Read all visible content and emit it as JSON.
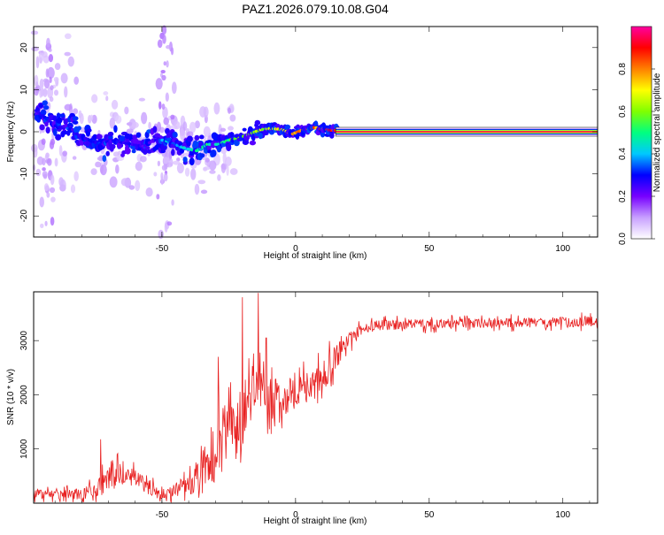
{
  "figure_title": "PAZ1.2026.079.10.08.G04",
  "chart_data": [
    {
      "type": "heatmap",
      "xlabel": "Height of straight line (km)",
      "ylabel": "Frequency (Hz)",
      "xlim": [
        -98,
        113
      ],
      "ylim": [
        -25,
        25
      ],
      "xticks": [
        -50,
        0,
        50,
        100
      ],
      "xtick_labels": [
        "-50",
        "0",
        "50",
        "100"
      ],
      "yticks": [
        -20,
        -10,
        0,
        10,
        20
      ],
      "ytick_labels": [
        "-20",
        "-10",
        "0",
        "10",
        "20"
      ],
      "colorbar": {
        "label": "Normalized spectral amplitude",
        "range": [
          0,
          1
        ],
        "ticks": [
          0.0,
          0.2,
          0.4,
          0.6,
          0.8
        ],
        "tick_labels": [
          "0.0",
          "0.2",
          "0.4",
          "0.6",
          "0.8"
        ],
        "colormap": [
          "#ffffff",
          "#c8a0ff",
          "#7700ff",
          "#0000ff",
          "#00c8ff",
          "#00ff80",
          "#80ff00",
          "#ffff00",
          "#ff8000",
          "#ff0000",
          "#ff00a0"
        ]
      },
      "ridge": {
        "x": [
          -97,
          -93,
          -89,
          -85,
          -81,
          -77,
          -73,
          -69,
          -65,
          -61,
          -57,
          -53,
          -49,
          -45,
          -41,
          -37,
          -33,
          -29,
          -25,
          -21,
          -17,
          -13,
          -9,
          -5,
          -1,
          3,
          7,
          11,
          15
        ],
        "freq": [
          5,
          3,
          1,
          1.5,
          -1,
          -2,
          -3,
          -2,
          -2.5,
          -3,
          -3.5,
          -2,
          -2,
          -3,
          -4,
          -4.5,
          -3,
          -3,
          -2,
          -1.5,
          -0.5,
          0.5,
          0.8,
          0.5,
          -0.5,
          0.5,
          1,
          0.5,
          0.3
        ],
        "amplitude": [
          0.25,
          0.3,
          0.3,
          0.25,
          0.3,
          0.3,
          0.3,
          0.3,
          0.3,
          0.28,
          0.25,
          0.25,
          0.45,
          0.35,
          0.45,
          0.5,
          0.5,
          0.5,
          0.55,
          0.6,
          0.6,
          0.65,
          0.7,
          0.7,
          0.8,
          0.8,
          0.85,
          0.9,
          0.9
        ]
      },
      "carrier_line": {
        "x_from": 15,
        "x_to": 113,
        "freq": 0,
        "amplitude": 0.95
      }
    },
    {
      "type": "line",
      "xlabel": "Height of straight line (km)",
      "ylabel": "SNR (10 * v/v)",
      "xlim": [
        -98,
        113
      ],
      "ylim": [
        0,
        3900
      ],
      "xticks": [
        -50,
        0,
        50,
        100
      ],
      "xtick_labels": [
        "-50",
        "0",
        "50",
        "100"
      ],
      "yticks": [
        1000,
        2000,
        3000
      ],
      "ytick_labels": [
        "1000",
        "2000",
        "3000"
      ],
      "color": "#e82020",
      "series": [
        {
          "name": "SNR",
          "x": [
            -98,
            -90,
            -80,
            -75,
            -70,
            -65,
            -60,
            -55,
            -50,
            -45,
            -40,
            -35,
            -30,
            -25,
            -20,
            -15,
            -10,
            -5,
            0,
            5,
            10,
            15,
            20,
            25,
            30,
            40,
            50,
            60,
            70,
            80,
            90,
            100,
            113
          ],
          "y": [
            150,
            160,
            170,
            250,
            400,
            600,
            450,
            300,
            150,
            250,
            350,
            600,
            1000,
            1400,
            1700,
            2100,
            1900,
            2000,
            2100,
            2200,
            2300,
            2700,
            3000,
            3200,
            3280,
            3300,
            3300,
            3320,
            3320,
            3330,
            3330,
            3340,
            3350
          ],
          "noise": [
            120,
            120,
            140,
            200,
            380,
            300,
            220,
            180,
            150,
            180,
            300,
            500,
            700,
            800,
            700,
            600,
            550,
            500,
            500,
            450,
            400,
            350,
            200,
            150,
            140,
            130,
            130,
            130,
            130,
            130,
            130,
            140,
            140
          ]
        }
      ],
      "peaks": [
        {
          "x": -14,
          "y": 3880
        },
        {
          "x": -20,
          "y": 3800
        },
        {
          "x": -11,
          "y": 3050
        },
        {
          "x": -29,
          "y": 2700
        },
        {
          "x": -73,
          "y": 1180
        }
      ]
    }
  ]
}
